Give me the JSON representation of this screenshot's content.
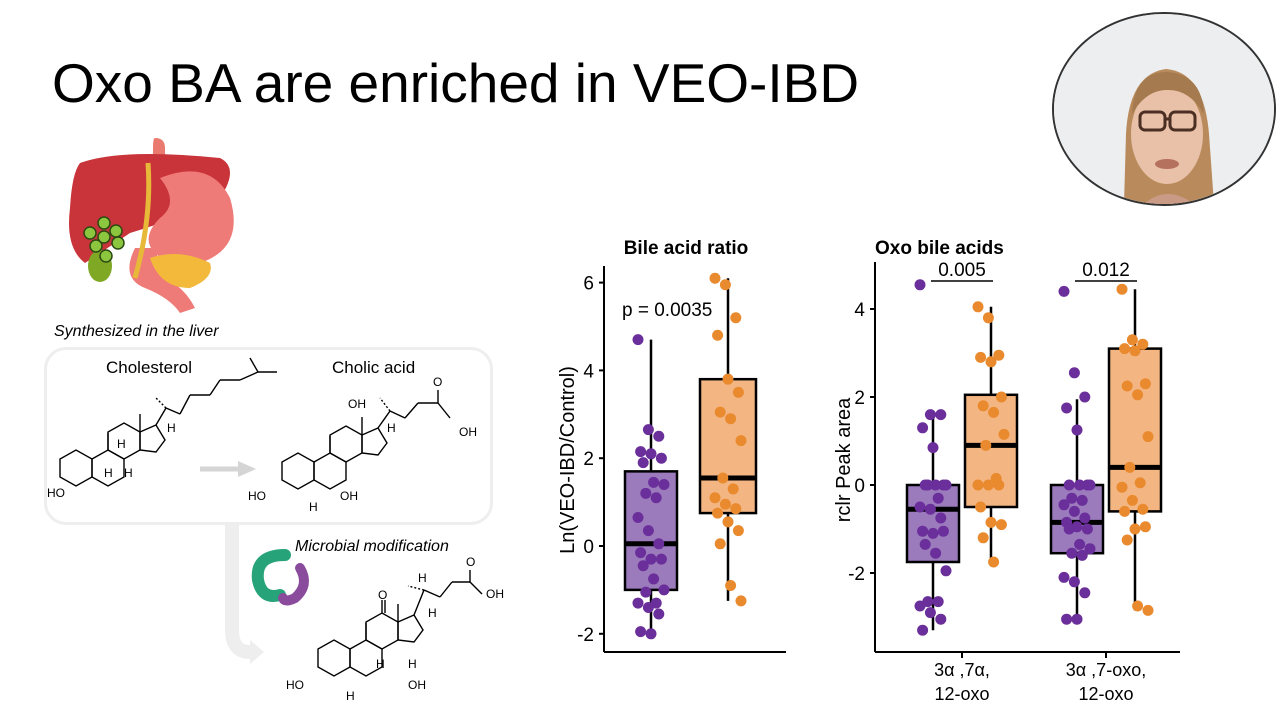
{
  "slide": {
    "title": "Oxo BA are enriched in VEO-IBD",
    "captions": {
      "liver": "Synthesized in the liver",
      "microbial": "Microbial modification"
    },
    "molecules": {
      "left": "Cholesterol",
      "right": "Cholic acid",
      "atoms": {
        "ho": "HO",
        "oh": "OH",
        "h": "H",
        "o": "O"
      }
    },
    "icons": [
      "liver-stomach-illustration",
      "bacteria-icon",
      "reaction-arrow",
      "curved-arrow"
    ],
    "webcam": {
      "label": "presenter-video"
    }
  },
  "colors": {
    "purple_point": "#6a2f9a",
    "purple_box": "#9c7bbd",
    "orange_point": "#ea8a2e",
    "orange_box": "#f3b683",
    "axis": "#000000",
    "panel_border": "#eeeeee",
    "arrow": "#d5d5d5"
  },
  "chart_data": [
    {
      "type": "box",
      "title": "Bile acid ratio",
      "xlabel": "",
      "ylabel": "Ln(VEO-IBD/Control)",
      "ylim": [
        -2.4,
        6.3
      ],
      "yticks": [
        -2,
        0,
        2,
        4,
        6
      ],
      "annotation": "p = 0.0035",
      "series": [
        {
          "name": "purple group",
          "color": "#6a2f9a",
          "q1": -1.0,
          "median": 0.05,
          "q3": 1.7,
          "whisker_low": -2.0,
          "whisker_high": 4.7,
          "points": [
            4.7,
            2.65,
            2.5,
            2.15,
            2.1,
            2.0,
            1.9,
            1.45,
            1.4,
            1.2,
            1.1,
            0.65,
            0.35,
            0.05,
            -0.15,
            -0.3,
            -0.3,
            -0.45,
            -0.75,
            -1.0,
            -1.05,
            -1.3,
            -1.3,
            -1.4,
            -1.55,
            -1.95,
            -2.0
          ]
        },
        {
          "name": "orange group",
          "color": "#ea8a2e",
          "q1": 0.75,
          "median": 1.55,
          "q3": 3.8,
          "whisker_low": -1.25,
          "whisker_high": 6.1,
          "points": [
            6.1,
            5.95,
            5.2,
            4.8,
            3.8,
            3.5,
            3.05,
            2.9,
            2.4,
            1.55,
            1.3,
            1.1,
            0.95,
            0.85,
            0.75,
            0.55,
            0.35,
            0.05,
            -0.9,
            -1.25
          ]
        }
      ]
    },
    {
      "type": "box",
      "title": "Oxo bile acids",
      "xlabel": "",
      "ylabel": "rclr Peak area",
      "ylim": [
        -3.8,
        4.9
      ],
      "yticks": [
        -2,
        0,
        2,
        4
      ],
      "categories": [
        "3α ,7α,\n12-oxo",
        "3α ,7-oxo,\n12-oxo"
      ],
      "category_lines": [
        [
          "3α ,7α,",
          "12-oxo"
        ],
        [
          "3α ,7-oxo,",
          "12-oxo"
        ]
      ],
      "annotations": [
        "0.005",
        "0.012"
      ],
      "series": [
        {
          "name": "purple group",
          "color": "#6a2f9a",
          "boxes": [
            {
              "q1": -1.75,
              "median": -0.55,
              "q3": 0.0,
              "whisker_low": -3.3,
              "whisker_high": 1.6,
              "points": [
                4.55,
                1.6,
                1.6,
                1.3,
                0.85,
                0.0,
                0.0,
                0.0,
                0.0,
                -0.0,
                -0.3,
                -0.5,
                -0.55,
                -0.75,
                -1.05,
                -1.1,
                -1.05,
                -1.35,
                -1.55,
                -1.95,
                -2.65,
                -2.65,
                -2.75,
                -2.9,
                -3.05,
                -3.3
              ]
            },
            {
              "q1": -1.55,
              "median": -0.85,
              "q3": 0.0,
              "whisker_low": -3.05,
              "whisker_high": 1.95,
              "points": [
                4.4,
                2.55,
                2.0,
                1.75,
                1.25,
                0.0,
                0.0,
                0.0,
                0.0,
                -0.3,
                -0.35,
                -0.45,
                -0.6,
                -0.75,
                -0.85,
                -0.95,
                -1.0,
                -1.0,
                -1.35,
                -1.45,
                -1.55,
                -1.6,
                -2.1,
                -2.2,
                -2.45,
                -3.05,
                -3.05
              ]
            }
          ]
        },
        {
          "name": "orange group",
          "color": "#ea8a2e",
          "boxes": [
            {
              "q1": -0.5,
              "median": 0.9,
              "q3": 2.05,
              "whisker_low": -1.75,
              "whisker_high": 4.05,
              "points": [
                4.05,
                3.8,
                2.95,
                2.9,
                2.8,
                2.0,
                1.8,
                1.65,
                1.15,
                0.9,
                0.15,
                0.0,
                0.0,
                0.0,
                -0.5,
                -0.85,
                -0.9,
                -1.2,
                -1.75
              ]
            },
            {
              "q1": -0.6,
              "median": 0.4,
              "q3": 3.1,
              "whisker_low": -2.85,
              "whisker_high": 4.45,
              "points": [
                4.45,
                3.3,
                3.2,
                3.1,
                3.05,
                2.3,
                2.25,
                2.05,
                1.1,
                0.4,
                0.05,
                -0.05,
                -0.35,
                -0.55,
                -0.6,
                -1.0,
                -0.95,
                -1.25,
                -2.75,
                -2.85
              ]
            }
          ]
        }
      ]
    }
  ]
}
